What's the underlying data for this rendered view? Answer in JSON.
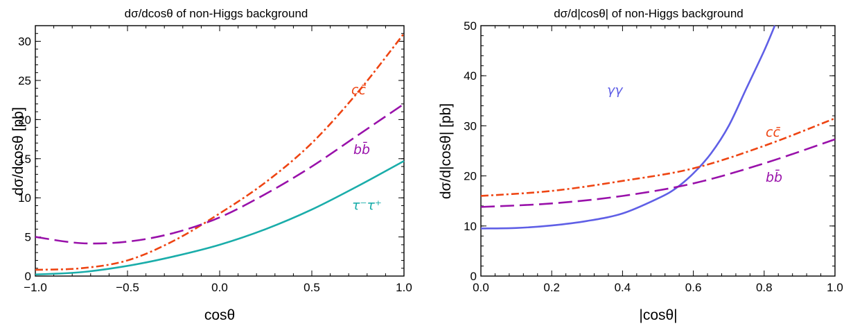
{
  "chart_data": [
    {
      "type": "line",
      "title": "dσ/dcosθ of non-Higgs background",
      "xlabel": "cosθ",
      "ylabel": "dσ/dcosθ [pb]",
      "xlim": [
        -1.0,
        1.0
      ],
      "ylim": [
        0,
        32
      ],
      "xticks": [
        "-1.0",
        "-0.5",
        "0.0",
        "0.5",
        "1.0"
      ],
      "yticks": [
        "0",
        "5",
        "10",
        "15",
        "20",
        "25",
        "30"
      ],
      "grid": false,
      "series": [
        {
          "name": "cc̄",
          "color": "#ee4412",
          "dash": "dashdot",
          "x": [
            -1.0,
            -0.75,
            -0.5,
            -0.25,
            0.0,
            0.25,
            0.5,
            0.75,
            1.0
          ],
          "y": [
            0.8,
            1.0,
            2.0,
            4.5,
            8.0,
            12.0,
            17.0,
            23.5,
            31.0
          ]
        },
        {
          "name": "bb̄",
          "color": "#9911aa",
          "dash": "dashed",
          "x": [
            -1.0,
            -0.75,
            -0.5,
            -0.25,
            0.0,
            0.25,
            0.5,
            0.75,
            1.0
          ],
          "y": [
            5.0,
            4.2,
            4.4,
            5.5,
            7.5,
            10.5,
            14.0,
            18.0,
            22.0
          ]
        },
        {
          "name": "τ⁻τ⁺",
          "color": "#1aadaa",
          "dash": "solid",
          "x": [
            -1.0,
            -0.75,
            -0.5,
            -0.25,
            0.0,
            0.25,
            0.5,
            0.75,
            1.0
          ],
          "y": [
            0.2,
            0.5,
            1.3,
            2.5,
            4.0,
            6.0,
            8.5,
            11.5,
            14.7
          ]
        }
      ]
    },
    {
      "type": "line",
      "title": "dσ/d|cosθ| of non-Higgs background",
      "xlabel": "|cosθ|",
      "ylabel": "dσ/d|cosθ| [pb]",
      "xlim": [
        0.0,
        1.0
      ],
      "ylim": [
        0,
        50
      ],
      "xticks": [
        "0.0",
        "0.2",
        "0.4",
        "0.6",
        "0.8",
        "1.0"
      ],
      "yticks": [
        "0",
        "10",
        "20",
        "30",
        "40",
        "50"
      ],
      "grid": false,
      "series": [
        {
          "name": "γγ",
          "color": "#5f5fe6",
          "dash": "solid",
          "x": [
            0.0,
            0.1,
            0.2,
            0.3,
            0.4,
            0.5,
            0.55,
            0.6,
            0.65,
            0.7,
            0.75,
            0.8,
            0.83
          ],
          "y": [
            9.5,
            9.6,
            10.1,
            11.0,
            12.5,
            15.5,
            17.5,
            20.5,
            24.5,
            30.0,
            37.5,
            45.0,
            50.0
          ]
        },
        {
          "name": "cc̄",
          "color": "#ee4412",
          "dash": "dashdot",
          "x": [
            0.0,
            0.2,
            0.4,
            0.6,
            0.8,
            1.0
          ],
          "y": [
            16.0,
            17.0,
            19.0,
            21.5,
            26.0,
            31.5
          ]
        },
        {
          "name": "bb̄",
          "color": "#9911aa",
          "dash": "dashed",
          "x": [
            0.0,
            0.2,
            0.4,
            0.6,
            0.8,
            1.0
          ],
          "y": [
            13.8,
            14.5,
            16.0,
            18.5,
            22.5,
            27.3
          ]
        }
      ]
    }
  ]
}
